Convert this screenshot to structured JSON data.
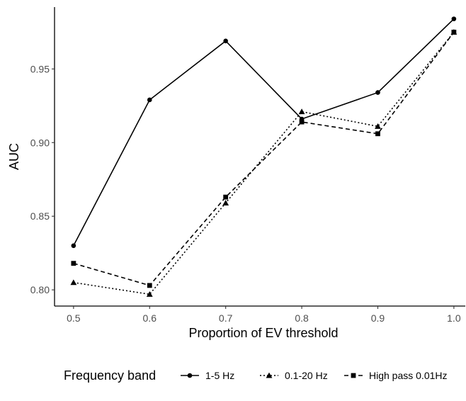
{
  "chart_data": {
    "type": "line",
    "title": "",
    "xlabel": "Proportion of EV threshold",
    "ylabel": "AUC",
    "x": [
      0.5,
      0.6,
      0.7,
      0.8,
      0.9,
      1.0
    ],
    "x_tick_labels": [
      "0.5",
      "0.6",
      "0.7",
      "0.8",
      "0.9",
      "1.0"
    ],
    "y_ticks": [
      0.8,
      0.85,
      0.9,
      0.95
    ],
    "y_tick_labels": [
      "0.80",
      "0.85",
      "0.90",
      "0.95"
    ],
    "xlim": [
      0.475,
      1.015
    ],
    "ylim": [
      0.789,
      0.992
    ],
    "grid": false,
    "legend_title": "Frequency band",
    "legend_position": "bottom",
    "series": [
      {
        "name": "1-5 Hz",
        "marker": "circle",
        "line_style": "solid",
        "values": [
          0.83,
          0.929,
          0.969,
          0.916,
          0.934,
          0.984
        ]
      },
      {
        "name": "0.1-20 Hz",
        "marker": "triangle",
        "line_style": "dotted",
        "values": [
          0.805,
          0.797,
          0.859,
          0.921,
          0.911,
          0.975
        ]
      },
      {
        "name": "High pass 0.01Hz",
        "marker": "square",
        "line_style": "dashed",
        "values": [
          0.818,
          0.803,
          0.863,
          0.914,
          0.906,
          0.975
        ]
      }
    ]
  }
}
